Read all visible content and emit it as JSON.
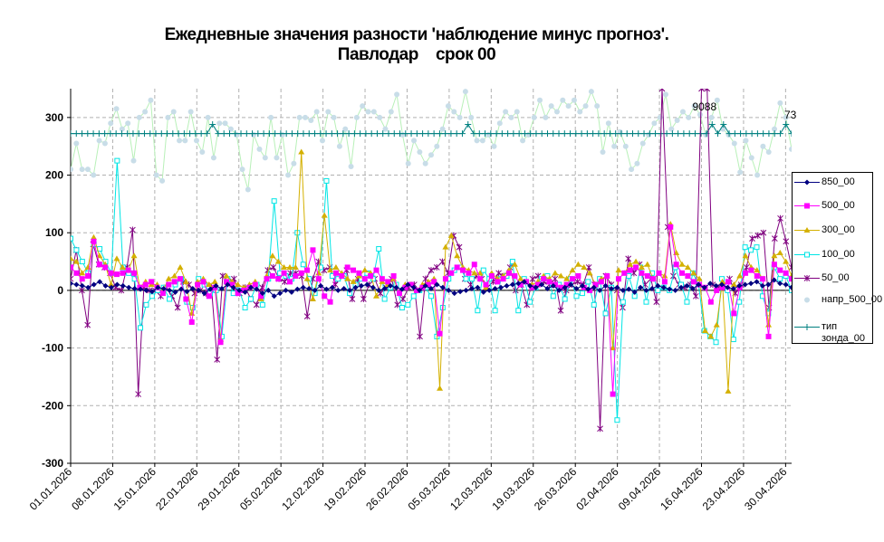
{
  "chart_data": {
    "type": "line",
    "title_line1": "Ежедневные значения разности 'наблюдение минус прогноз'.",
    "title_line2": "Павлодар    срок 00",
    "ylim": [
      -300,
      350
    ],
    "y_ticks": [
      "300",
      "200",
      "100",
      "0",
      "-100",
      "-200",
      "-300"
    ],
    "y_tick_values": [
      300,
      200,
      100,
      0,
      -100,
      -200,
      -300
    ],
    "x_tick_labels": [
      "01.01.2026",
      "08.01.2026",
      "15.01.2026",
      "22.01.2026",
      "29.01.2026",
      "05.02.2026",
      "12.02.2026",
      "19.02.2026",
      "26.02.2026",
      "05.03.2026",
      "12.03.2026",
      "19.03.2026",
      "26.03.2026",
      "02.04.2026",
      "09.04.2026",
      "16.04.2026",
      "23.04.2026",
      "30.04.2026"
    ],
    "grid": true,
    "legend_position": "right",
    "annotations": [
      {
        "text": "9088",
        "x_day": 105.5,
        "y": 312
      },
      {
        "text": "73",
        "x_day": 119.8,
        "y": 298
      }
    ],
    "series": [
      {
        "name": "850_00",
        "color": "#000080",
        "marker": "diamond",
        "values": [
          12,
          10,
          8,
          5,
          10,
          15,
          8,
          5,
          10,
          8,
          5,
          3,
          2,
          0,
          -2,
          5,
          3,
          0,
          -3,
          2,
          -2,
          3,
          0,
          -5,
          2,
          8,
          3,
          10,
          5,
          0,
          -3,
          5,
          2,
          -5,
          0,
          -10,
          -5,
          0,
          -3,
          2,
          5,
          3,
          0,
          8,
          2,
          5,
          0,
          3,
          0,
          5,
          8,
          10,
          5,
          0,
          3,
          8,
          5,
          2,
          10,
          5,
          0,
          8,
          3,
          10,
          5,
          0,
          -5,
          -2,
          0,
          3,
          5,
          -3,
          0,
          3,
          5,
          8,
          10,
          12,
          15,
          8,
          5,
          10,
          3,
          8,
          0,
          5,
          10,
          3,
          8,
          2,
          5,
          0,
          8,
          3,
          5,
          0,
          2,
          -3,
          5,
          0,
          3,
          8,
          5,
          2,
          0,
          5,
          8,
          3,
          10,
          5,
          12,
          8,
          10,
          5,
          3,
          8,
          10,
          12,
          15,
          8,
          10,
          18,
          12,
          10,
          5
        ]
      },
      {
        "name": "500_00",
        "color": "#ff00ff",
        "marker": "square",
        "values": [
          40,
          30,
          20,
          25,
          85,
          45,
          40,
          30,
          28,
          30,
          35,
          30,
          5,
          10,
          15,
          5,
          -5,
          10,
          15,
          20,
          -15,
          -55,
          10,
          15,
          -10,
          5,
          -90,
          15,
          10,
          -5,
          0,
          5,
          10,
          -10,
          20,
          25,
          20,
          30,
          15,
          25,
          30,
          35,
          70,
          20,
          -10,
          -20,
          30,
          25,
          40,
          35,
          30,
          20,
          25,
          35,
          20,
          15,
          25,
          -5,
          5,
          10,
          0,
          5,
          10,
          15,
          -75,
          20,
          30,
          40,
          35,
          30,
          45,
          20,
          10,
          25,
          15,
          20,
          30,
          25,
          10,
          15,
          5,
          10,
          20,
          15,
          10,
          5,
          10,
          20,
          25,
          5,
          0,
          10,
          15,
          25,
          -180,
          20,
          30,
          35,
          40,
          30,
          25,
          20,
          30,
          15,
          110,
          45,
          30,
          25,
          15,
          10,
          5,
          -20,
          0,
          5,
          15,
          -40,
          5,
          30,
          35,
          25,
          20,
          -80,
          45,
          35,
          30,
          20
        ]
      },
      {
        "name": "300_00",
        "color": "#d4b000",
        "marker": "triangle",
        "values": [
          55,
          50,
          30,
          40,
          92,
          60,
          45,
          10,
          55,
          40,
          35,
          60,
          5,
          15,
          10,
          10,
          0,
          20,
          25,
          40,
          15,
          -40,
          15,
          20,
          10,
          15,
          -85,
          25,
          15,
          10,
          5,
          10,
          15,
          -15,
          25,
          60,
          50,
          40,
          40,
          40,
          240,
          20,
          -15,
          30,
          130,
          35,
          40,
          30,
          20,
          15,
          25,
          35,
          30,
          -10,
          15,
          10,
          20,
          -5,
          10,
          10,
          0,
          10,
          15,
          20,
          -170,
          75,
          95,
          60,
          40,
          35,
          30,
          30,
          5,
          30,
          20,
          25,
          35,
          45,
          20,
          15,
          10,
          15,
          25,
          20,
          30,
          25,
          20,
          35,
          45,
          40,
          30,
          10,
          20,
          25,
          -100,
          35,
          30,
          45,
          50,
          40,
          45,
          20,
          30,
          25,
          115,
          65,
          45,
          40,
          30,
          20,
          -70,
          -80,
          -60,
          15,
          -175,
          10,
          25,
          60,
          40,
          35,
          20,
          -60,
          60,
          65,
          50,
          25
        ]
      },
      {
        "name": "100_00",
        "color": "#00e5e5",
        "marker": "square-open",
        "values": [
          90,
          70,
          50,
          30,
          80,
          72,
          50,
          30,
          225,
          40,
          30,
          20,
          -65,
          -25,
          -10,
          0,
          5,
          -15,
          10,
          20,
          -20,
          -30,
          20,
          10,
          -5,
          0,
          -80,
          20,
          -5,
          0,
          -30,
          -15,
          10,
          -25,
          20,
          155,
          30,
          25,
          20,
          100,
          45,
          20,
          -5,
          40,
          190,
          25,
          20,
          25,
          -5,
          10,
          20,
          30,
          20,
          72,
          -15,
          5,
          10,
          -30,
          -25,
          -10,
          0,
          5,
          -10,
          -80,
          -30,
          20,
          35,
          40,
          20,
          20,
          -35,
          35,
          20,
          -35,
          20,
          25,
          50,
          -35,
          20,
          -20,
          5,
          20,
          25,
          -10,
          10,
          -15,
          20,
          -10,
          -5,
          15,
          -25,
          20,
          -40,
          5,
          -225,
          -20,
          25,
          -10,
          40,
          -20,
          30,
          0,
          5,
          0,
          40,
          10,
          -20,
          30,
          10,
          -70,
          -80,
          -90,
          20,
          0,
          -85,
          -20,
          75,
          70,
          75,
          -10,
          -40,
          40,
          20,
          25,
          0
        ]
      },
      {
        "name": "50_00",
        "color": "#800080",
        "marker": "x",
        "values": [
          20,
          70,
          0,
          -60,
          80,
          45,
          40,
          30,
          5,
          0,
          40,
          105,
          -180,
          5,
          0,
          0,
          -10,
          5,
          -10,
          -30,
          15,
          10,
          -5,
          0,
          -5,
          5,
          -120,
          25,
          15,
          20,
          -5,
          5,
          -15,
          -25,
          5,
          35,
          40,
          20,
          15,
          30,
          30,
          25,
          -45,
          20,
          50,
          35,
          40,
          10,
          25,
          35,
          -15,
          20,
          -15,
          10,
          20,
          -5,
          5,
          20,
          -25,
          -15,
          5,
          10,
          -80,
          20,
          35,
          40,
          50,
          30,
          95,
          75,
          20,
          10,
          25,
          20,
          5,
          15,
          30,
          25,
          40,
          0,
          10,
          -25,
          20,
          25,
          15,
          10,
          20,
          -35,
          0,
          10,
          15,
          10,
          40,
          10,
          -240,
          25,
          10,
          0,
          -30,
          55,
          30,
          45,
          10,
          20,
          -20,
          350,
          110,
          25,
          10,
          5,
          10,
          -10,
          350,
          350,
          10,
          5,
          10,
          20,
          -5,
          10,
          40,
          90,
          95,
          100,
          -30,
          90,
          125,
          85,
          40
        ]
      },
      {
        "name": "напр_500_00",
        "color": "#a8e0a8",
        "marker": "circle-light",
        "values": [
          210,
          255,
          210,
          210,
          200,
          260,
          255,
          290,
          315,
          280,
          290,
          225,
          300,
          310,
          330,
          200,
          190,
          300,
          310,
          260,
          260,
          310,
          260,
          240,
          300,
          230,
          290,
          290,
          280,
          270,
          210,
          175,
          270,
          245,
          230,
          300,
          230,
          270,
          200,
          220,
          300,
          300,
          295,
          310,
          260,
          310,
          300,
          250,
          280,
          215,
          300,
          320,
          310,
          310,
          300,
          280,
          310,
          340,
          270,
          220,
          260,
          240,
          220,
          235,
          250,
          280,
          320,
          310,
          300,
          345,
          300,
          260,
          260,
          270,
          250,
          290,
          310,
          300,
          310,
          260,
          270,
          300,
          330,
          300,
          320,
          310,
          330,
          320,
          330,
          310,
          320,
          345,
          320,
          240,
          290,
          250,
          275,
          250,
          210,
          220,
          255,
          270,
          290,
          300,
          340,
          280,
          295,
          310,
          300,
          320,
          305,
          270,
          300,
          330,
          280,
          270,
          255,
          205,
          260,
          230,
          200,
          250,
          240,
          280,
          325,
          300,
          245
        ]
      },
      {
        "name": "тип зонда_00",
        "color": "#008080",
        "marker": "plus",
        "values": [
          272,
          272,
          272,
          272,
          272,
          272,
          272,
          272,
          272,
          272,
          272,
          272,
          272,
          272,
          272,
          272,
          272,
          272,
          272,
          272,
          272,
          272,
          272,
          272,
          272,
          288,
          272,
          272,
          272,
          272,
          272,
          272,
          272,
          272,
          272,
          272,
          272,
          272,
          272,
          272,
          272,
          272,
          272,
          272,
          272,
          272,
          272,
          272,
          272,
          272,
          272,
          272,
          272,
          272,
          272,
          272,
          272,
          272,
          272,
          272,
          272,
          272,
          272,
          272,
          272,
          272,
          272,
          272,
          272,
          272,
          288,
          272,
          272,
          272,
          272,
          272,
          272,
          272,
          272,
          272,
          272,
          272,
          272,
          272,
          272,
          272,
          272,
          272,
          272,
          272,
          272,
          272,
          272,
          272,
          272,
          272,
          272,
          272,
          272,
          272,
          272,
          272,
          272,
          272,
          272,
          272,
          272,
          272,
          272,
          272,
          272,
          272,
          272,
          288,
          272,
          288,
          272,
          272,
          272,
          272,
          272,
          272,
          272,
          272,
          272,
          272,
          288,
          272
        ]
      }
    ]
  }
}
